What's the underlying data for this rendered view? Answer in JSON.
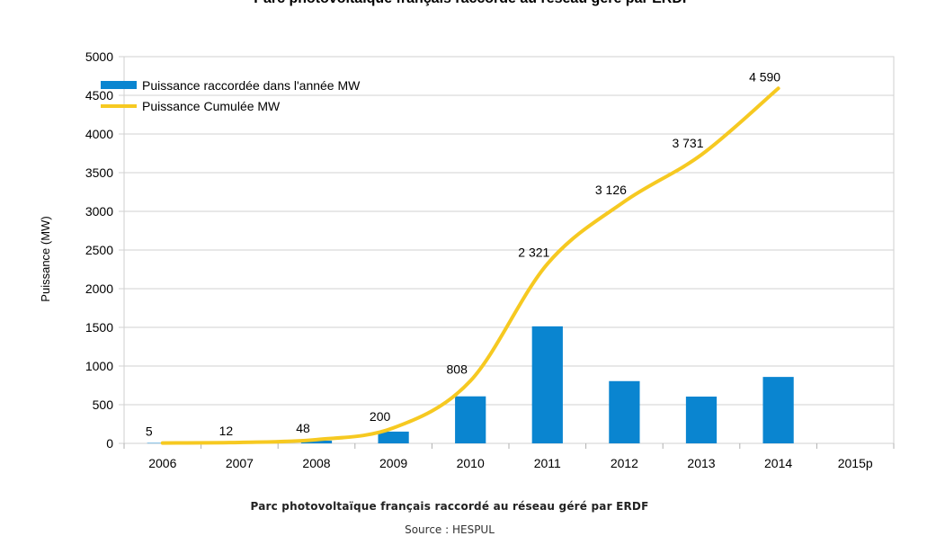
{
  "chart_data": {
    "type": "bar",
    "title": "Parc photovoltaïque français raccordé au réseau géré par ERDF",
    "xlabel": "",
    "ylabel": "Puissance  (MW)",
    "ylim": [
      0,
      5000
    ],
    "yticks": [
      "0",
      "500",
      "1000",
      "1500",
      "2000",
      "2500",
      "3000",
      "3500",
      "4000",
      "4500",
      "5000"
    ],
    "categories": [
      "2006",
      "2007",
      "2008",
      "2009",
      "2010",
      "2011",
      "2012",
      "2013",
      "2014",
      "2015p"
    ],
    "grid": true,
    "legend_position": "top-left",
    "series": [
      {
        "name": "Puissance raccordée dans l'année MW",
        "kind": "bar",
        "color": "#0a85d0",
        "values": [
          5,
          7,
          36,
          152,
          608,
          1513,
          805,
          605,
          859,
          null
        ]
      },
      {
        "name": "Puissance Cumulée MW",
        "kind": "line",
        "color": "#f6c921",
        "values": [
          5,
          12,
          48,
          200,
          808,
          2321,
          3126,
          3731,
          4590,
          null
        ],
        "data_labels": [
          "5",
          "12",
          "48",
          "200",
          "808",
          "2 321",
          "3 126",
          "3 731",
          "4 590",
          ""
        ]
      }
    ]
  },
  "caption": "Parc photovoltaïque français raccordé au réseau géré par ERDF",
  "source": "Source : HESPUL"
}
